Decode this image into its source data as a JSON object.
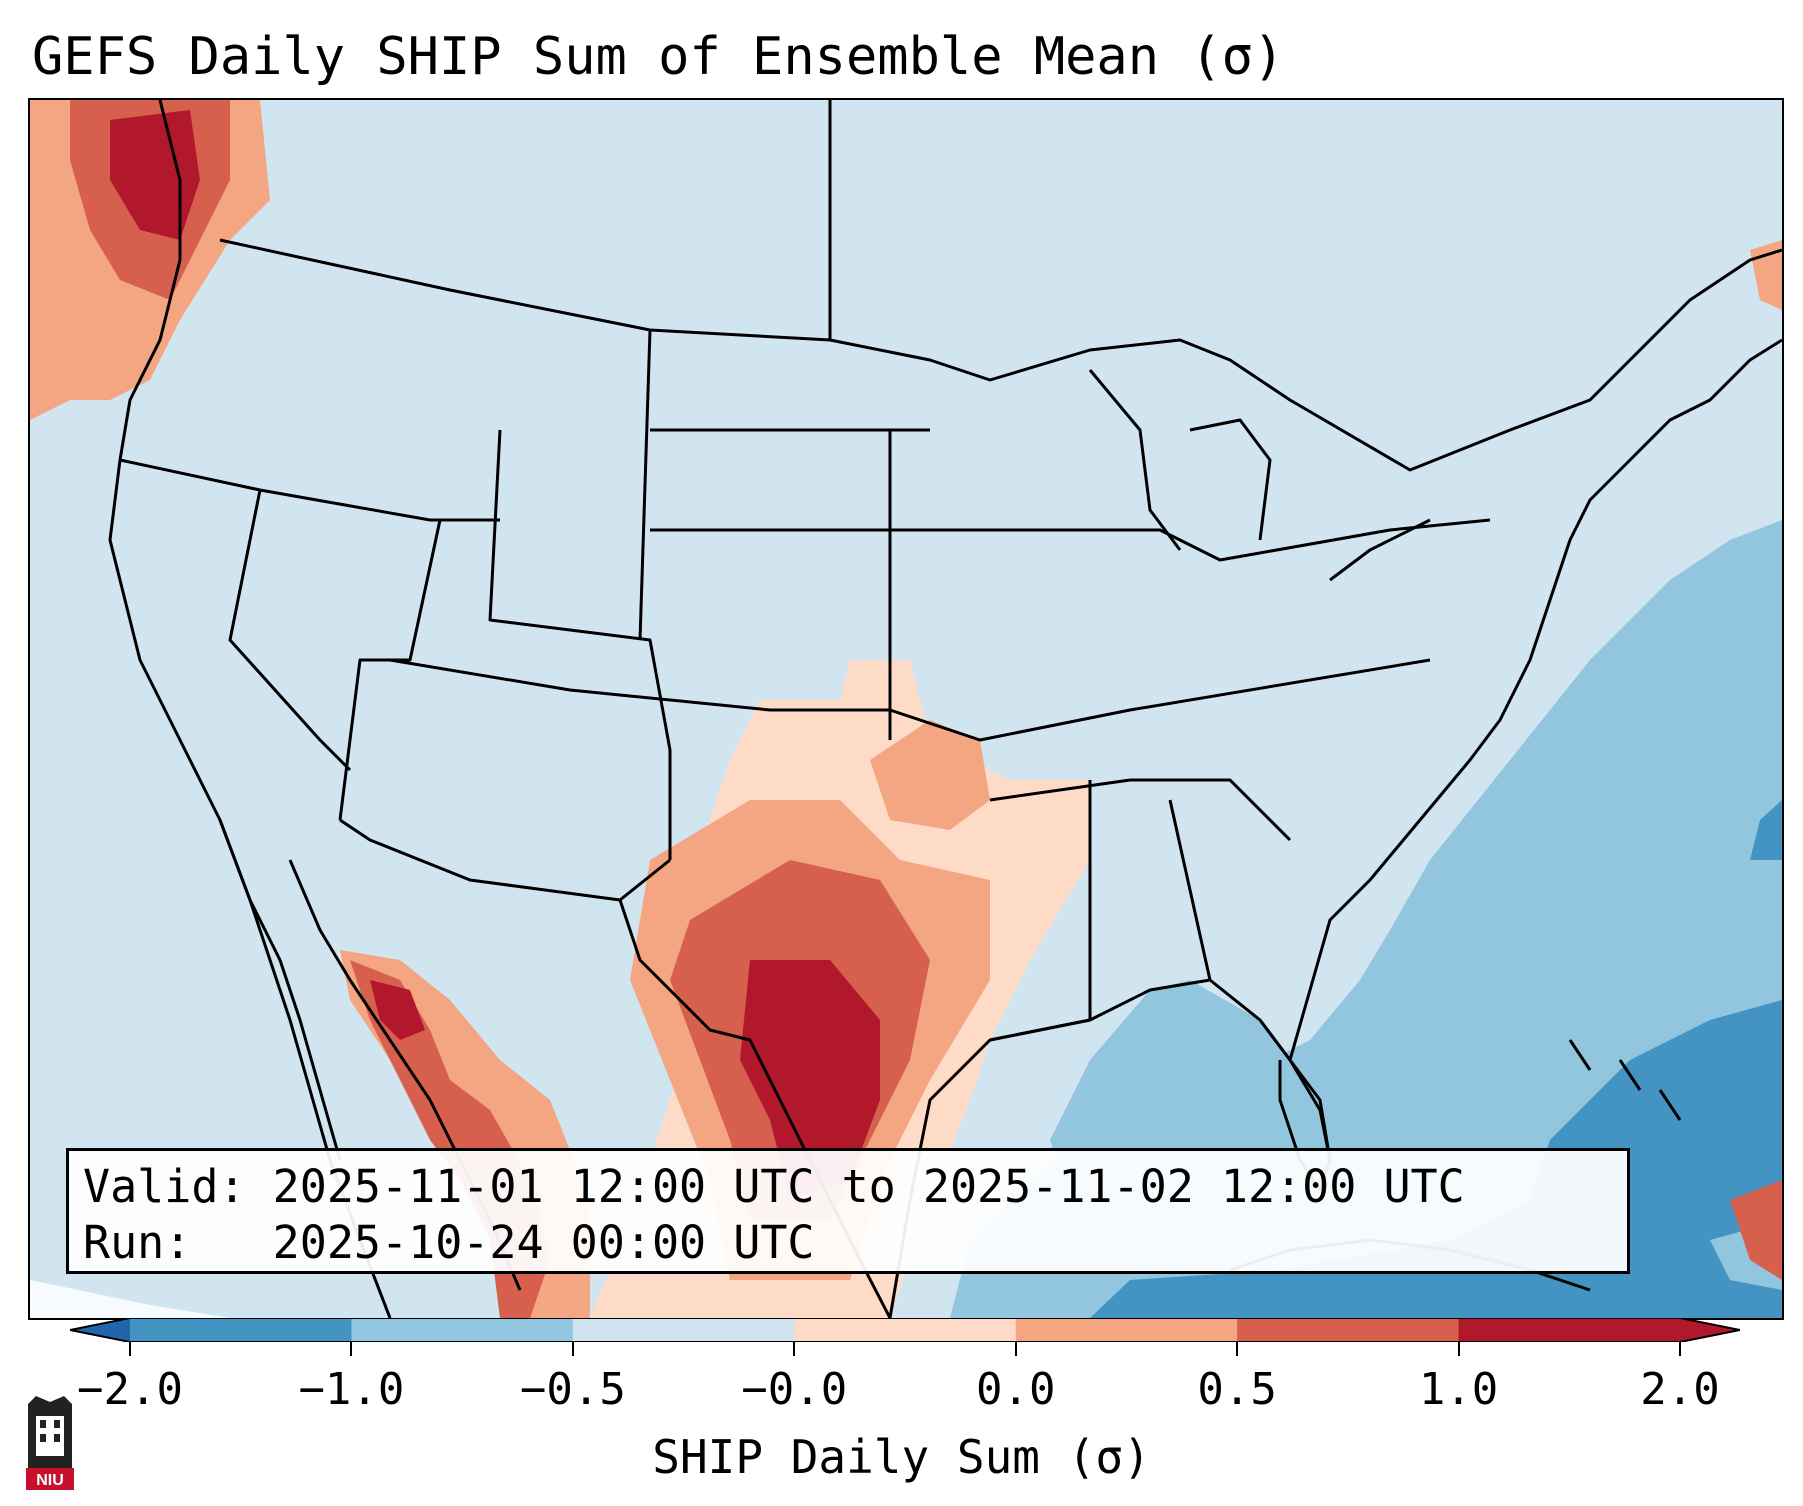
{
  "title": "GEFS Daily SHIP Sum of Ensemble Mean (σ)",
  "info": {
    "valid_label": "Valid:",
    "valid_value": "2025-11-01 12:00 UTC to 2025-11-02 12:00 UTC",
    "run_label": "Run:",
    "run_value": "2025-10-24 00:00 UTC"
  },
  "colorbar": {
    "label": "SHIP Daily Sum (σ)",
    "ticks": [
      "−2.0",
      "−1.0",
      "−0.5",
      "−0.0",
      "0.0",
      "0.5",
      "1.0",
      "2.0"
    ],
    "colors": [
      "#4393c3",
      "#92c5de",
      "#d1e5f0",
      "#fddbc7",
      "#f4a582",
      "#d6604d",
      "#b2182b"
    ],
    "under_color": "#2166ac",
    "over_color": "#b2182b"
  },
  "logo": {
    "text": "NIU",
    "name": "niu-logo"
  }
}
